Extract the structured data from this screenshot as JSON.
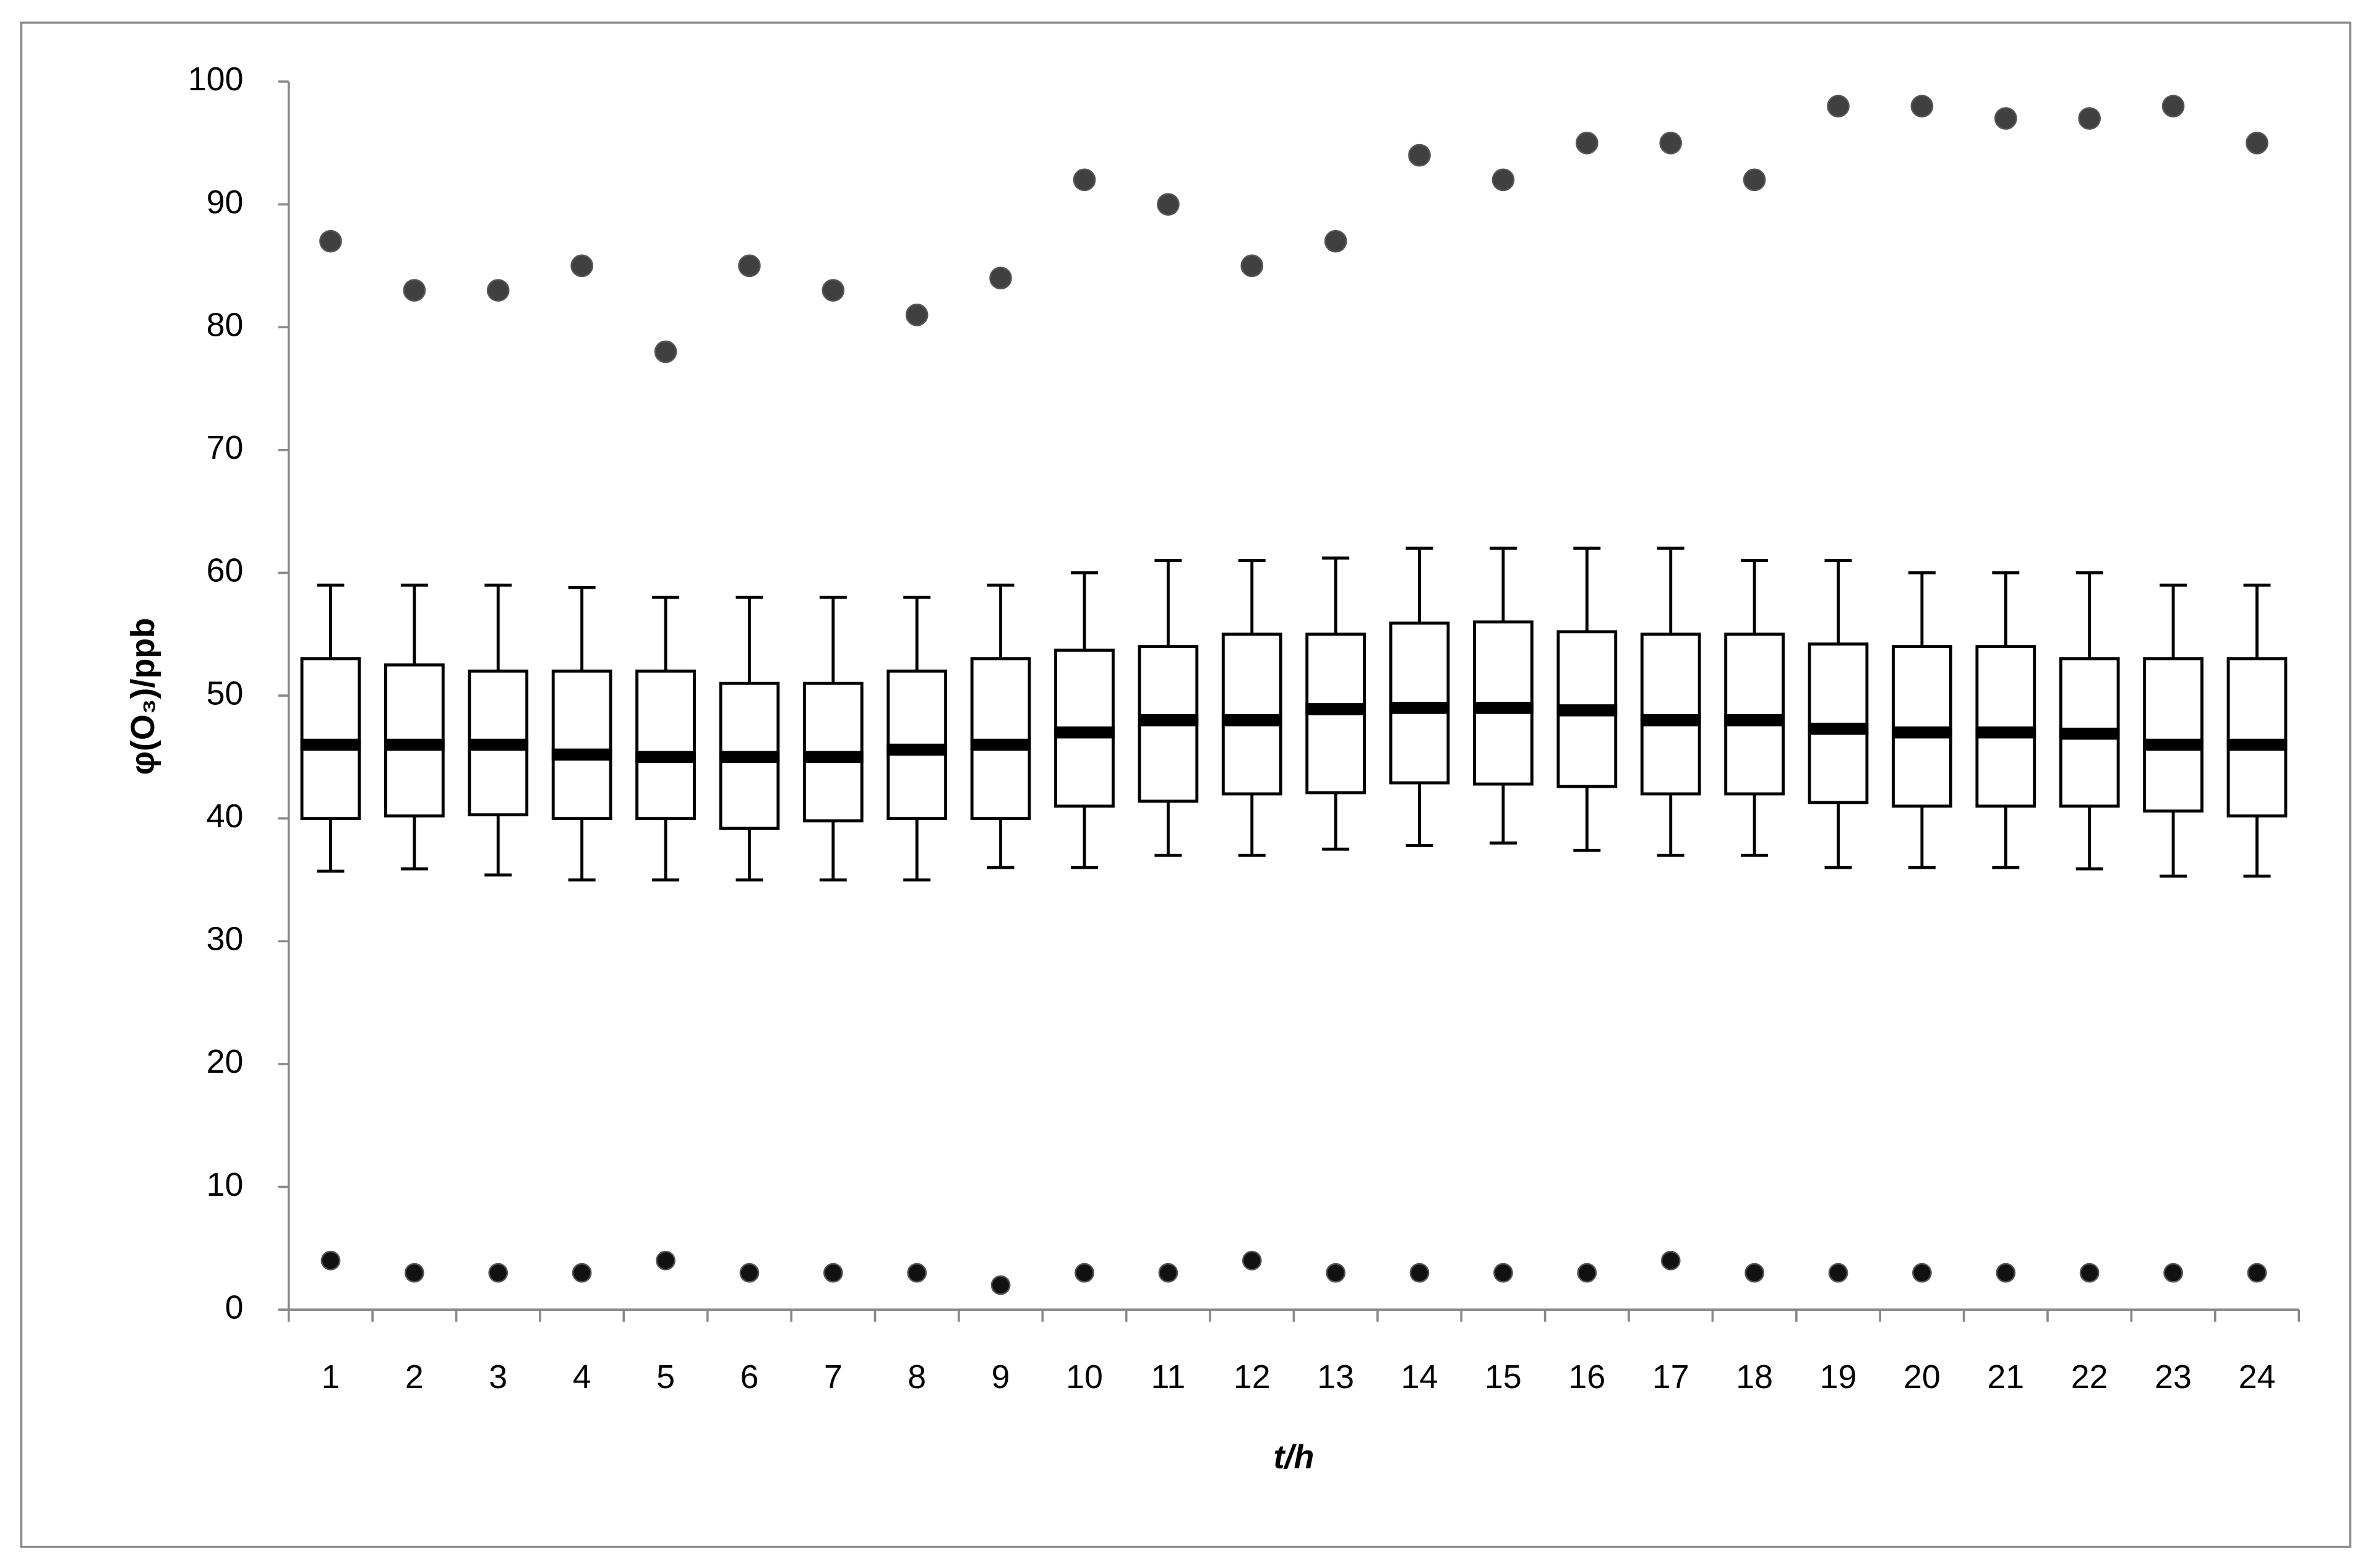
{
  "chart_data": {
    "type": "box",
    "xlabel": "t/h",
    "ylabel": "φ(O₃)/ppb",
    "categories": [
      "1",
      "2",
      "3",
      "4",
      "5",
      "6",
      "7",
      "8",
      "9",
      "10",
      "11",
      "12",
      "13",
      "14",
      "15",
      "16",
      "17",
      "18",
      "19",
      "20",
      "21",
      "22",
      "23",
      "24"
    ],
    "whislo": [
      35.7,
      35.9,
      35.4,
      35,
      35,
      35,
      35,
      35,
      36,
      36,
      37,
      37,
      37.5,
      37.8,
      38,
      37.4,
      37,
      37,
      36,
      36,
      36,
      35.9,
      35.3,
      35.3
    ],
    "q1": [
      40,
      40.2,
      40.3,
      40,
      40,
      39.2,
      39.8,
      40,
      40,
      41,
      41.4,
      42,
      42.1,
      42.9,
      42.8,
      42.6,
      42,
      42,
      41.3,
      41,
      41,
      41,
      40.6,
      40.2
    ],
    "med": [
      46,
      46,
      46,
      45.2,
      45,
      45,
      45,
      45.6,
      46,
      47,
      48,
      48,
      48.9,
      49,
      49,
      48.8,
      48,
      48,
      47.3,
      47,
      47,
      46.9,
      46,
      46
    ],
    "q3": [
      53,
      52.5,
      52,
      52,
      52,
      51,
      51,
      52,
      53,
      53.7,
      54,
      55,
      55,
      55.9,
      56,
      55.2,
      55,
      55,
      54.2,
      54,
      54,
      53,
      53,
      53
    ],
    "whishi": [
      59,
      59,
      59,
      58.8,
      58,
      58,
      58,
      58,
      59,
      60,
      61,
      61,
      61.2,
      62,
      62,
      62,
      62,
      61,
      61,
      60,
      60,
      60,
      59,
      59
    ],
    "outliers_high": {
      "color": "#404040",
      "values": [
        87,
        83,
        83,
        85,
        78,
        85,
        83,
        81,
        84,
        92,
        90,
        85,
        87,
        94,
        92,
        95,
        95,
        92,
        98,
        98,
        97,
        97,
        98,
        95
      ]
    },
    "outliers_low": {
      "color": "#111111",
      "values": [
        4,
        3,
        3,
        3,
        4,
        3,
        3,
        3,
        2,
        3,
        3,
        4,
        3,
        3,
        3,
        3,
        4,
        3,
        3,
        3,
        3,
        3,
        3,
        3
      ]
    },
    "ylim": [
      0,
      100
    ],
    "yticks": [
      0,
      10,
      20,
      30,
      40,
      50,
      60,
      70,
      80,
      90,
      100
    ],
    "grid": false
  }
}
